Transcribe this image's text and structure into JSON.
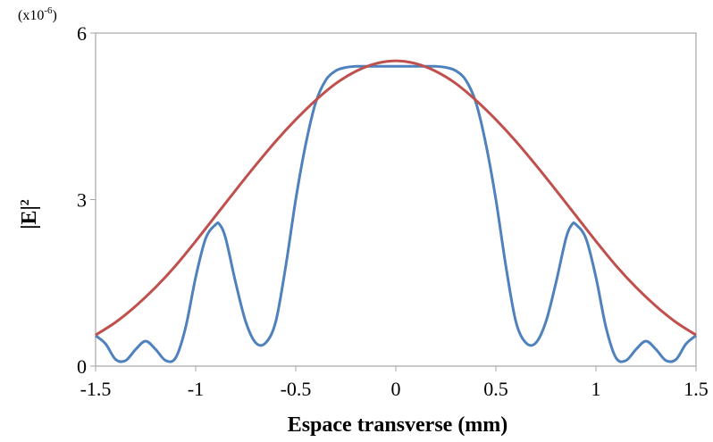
{
  "chart_data": {
    "type": "line",
    "title": "",
    "xlabel": "Espace transverse (mm)",
    "ylabel": "|E|",
    "ylabel_sup": "2",
    "y_multiplier": {
      "base": "(x10",
      "exp": "-6",
      "close": ")"
    },
    "xlim": [
      -1.5,
      1.5
    ],
    "ylim": [
      0,
      6
    ],
    "x_ticks": [
      "-1.5",
      "-1",
      "-0.5",
      "0",
      "0.5",
      "1",
      "1.5"
    ],
    "x_tick_values": [
      -1.5,
      -1,
      -0.5,
      0,
      0.5,
      1,
      1.5
    ],
    "y_ticks": [
      "0",
      "3",
      "6"
    ],
    "y_tick_values": [
      0,
      3,
      6
    ],
    "grid": false,
    "legend": "none",
    "series": [
      {
        "color": "#4f81bd",
        "x": [
          -1.5,
          -1.45,
          -1.4,
          -1.35,
          -1.3,
          -1.25,
          -1.2,
          -1.15,
          -1.1,
          -1.05,
          -1.0,
          -0.95,
          -0.9,
          -0.88,
          -0.85,
          -0.8,
          -0.75,
          -0.7,
          -0.65,
          -0.6,
          -0.55,
          -0.5,
          -0.45,
          -0.4,
          -0.35,
          -0.3,
          -0.25,
          -0.2,
          -0.15,
          -0.1,
          0.0,
          0.1,
          0.15,
          0.2,
          0.25,
          0.3,
          0.35,
          0.4,
          0.45,
          0.5,
          0.55,
          0.6,
          0.65,
          0.7,
          0.75,
          0.8,
          0.85,
          0.88,
          0.9,
          0.95,
          1.0,
          1.05,
          1.1,
          1.15,
          1.2,
          1.25,
          1.3,
          1.35,
          1.4,
          1.45,
          1.5
        ],
        "values": [
          0.55,
          0.4,
          0.12,
          0.1,
          0.3,
          0.45,
          0.3,
          0.1,
          0.15,
          0.7,
          1.6,
          2.3,
          2.55,
          2.55,
          2.3,
          1.5,
          0.8,
          0.42,
          0.42,
          0.8,
          1.8,
          3.0,
          4.0,
          4.75,
          5.15,
          5.32,
          5.38,
          5.4,
          5.4,
          5.4,
          5.4,
          5.4,
          5.4,
          5.4,
          5.38,
          5.32,
          5.15,
          4.75,
          4.0,
          3.0,
          1.8,
          0.8,
          0.42,
          0.42,
          0.8,
          1.5,
          2.3,
          2.55,
          2.55,
          2.3,
          1.6,
          0.7,
          0.15,
          0.1,
          0.3,
          0.45,
          0.3,
          0.1,
          0.12,
          0.4,
          0.55
        ]
      },
      {
        "color": "#c0504d",
        "x": [
          -1.5,
          -1.4,
          -1.3,
          -1.2,
          -1.1,
          -1.0,
          -0.9,
          -0.8,
          -0.7,
          -0.6,
          -0.5,
          -0.4,
          -0.3,
          -0.2,
          -0.1,
          0.0,
          0.1,
          0.2,
          0.3,
          0.4,
          0.5,
          0.6,
          0.7,
          0.8,
          0.9,
          1.0,
          1.1,
          1.2,
          1.3,
          1.4,
          1.5
        ],
        "values": [
          0.56,
          0.79,
          1.08,
          1.42,
          1.81,
          2.25,
          2.71,
          3.17,
          3.62,
          4.05,
          4.44,
          4.79,
          5.09,
          5.31,
          5.45,
          5.5,
          5.45,
          5.31,
          5.09,
          4.79,
          4.44,
          4.05,
          3.62,
          3.17,
          2.71,
          2.25,
          1.81,
          1.42,
          1.08,
          0.79,
          0.56
        ]
      }
    ]
  }
}
